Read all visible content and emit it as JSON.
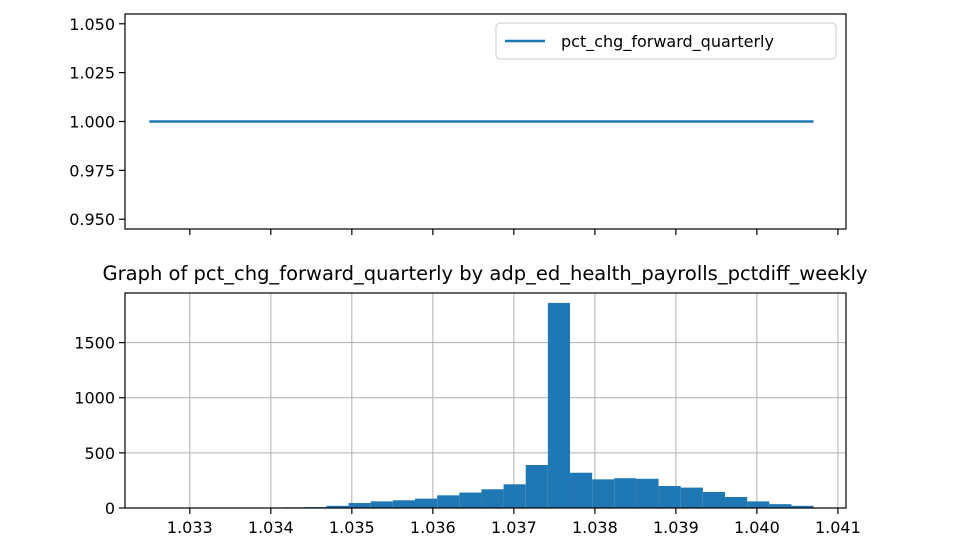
{
  "chart_data": [
    {
      "type": "line",
      "title": "",
      "xlabel": "",
      "ylabel": "",
      "x": [
        1.0325,
        1.0407
      ],
      "series": [
        {
          "name": "pct_chg_forward_quarterly",
          "values": [
            1.0,
            1.0
          ],
          "color": "#1f77b4"
        }
      ],
      "ylim": [
        0.945,
        1.055
      ],
      "yticks": [
        "0.950",
        "0.975",
        "1.000",
        "1.025",
        "1.050"
      ],
      "xlim": [
        1.0322,
        1.0411
      ],
      "grid": false,
      "legend": "top-right"
    },
    {
      "type": "bar",
      "title": "Graph of pct_chg_forward_quarterly by adp_ed_health_payrolls_pctdiff_weekly",
      "xlabel": "",
      "ylabel": "",
      "bin_start": 1.0325,
      "bin_width": 0.00027333,
      "values": [
        1,
        2,
        1,
        2,
        3,
        4,
        6,
        8,
        20,
        45,
        60,
        70,
        85,
        115,
        140,
        170,
        215,
        390,
        1860,
        320,
        260,
        270,
        265,
        200,
        185,
        145,
        100,
        60,
        35,
        20
      ],
      "color": "#1f77b4",
      "xlim": [
        1.0322,
        1.0411
      ],
      "ylim": [
        0,
        1950
      ],
      "xticks": [
        "1.033",
        "1.034",
        "1.035",
        "1.036",
        "1.037",
        "1.038",
        "1.039",
        "1.040",
        "1.041"
      ],
      "yticks": [
        "0",
        "500",
        "1000",
        "1500"
      ],
      "grid": true
    }
  ]
}
